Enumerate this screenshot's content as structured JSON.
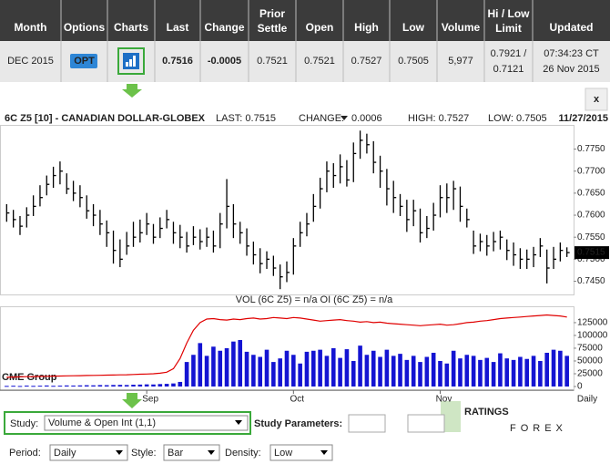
{
  "table": {
    "columns": [
      [
        "Month"
      ],
      [
        "Options"
      ],
      [
        "Charts"
      ],
      [
        "Last"
      ],
      [
        "Change"
      ],
      [
        "Prior",
        "Settle"
      ],
      [
        "Open"
      ],
      [
        "High"
      ],
      [
        "Low"
      ],
      [
        "Volume"
      ],
      [
        "Hi / Low",
        "Limit"
      ],
      [
        "Updated"
      ]
    ],
    "row": {
      "month": "DEC 2015",
      "options": "OPT",
      "last": "0.7516",
      "change": "-0.0005",
      "prior_settle": "0.7521",
      "open": "0.7521",
      "high": "0.7527",
      "low": "0.7505",
      "volume": "5,977",
      "limit": [
        "0.7921 /",
        "0.7121"
      ],
      "updated": [
        "07:34:23 CT",
        "26 Nov 2015"
      ]
    }
  },
  "close_button": "x",
  "chart_header": {
    "title": "6C Z5 [10] - CANADIAN DOLLAR-GLOBEX",
    "last": "LAST: 0.7515",
    "change_label": "CHANGE:",
    "change": "0.0006",
    "high": "HIGH: 0.7527",
    "low": "LOW: 0.7505",
    "date": "11/27/2015"
  },
  "chart_data": [
    {
      "type": "hlc",
      "color": "#000000",
      "xlim": [
        -1,
        85
      ],
      "ylim": [
        0.742,
        0.7805
      ],
      "yticks": [
        {
          "value": 0.745,
          "label": "0.7450"
        },
        {
          "value": 0.75,
          "label": "0.7500"
        },
        {
          "value": 0.755,
          "label": "0.7550"
        },
        {
          "value": 0.76,
          "label": "0.7600"
        },
        {
          "value": 0.765,
          "label": "0.7650"
        },
        {
          "value": 0.77,
          "label": "0.7700"
        },
        {
          "value": 0.775,
          "label": "0.7750"
        }
      ],
      "grid": false,
      "last_marker": {
        "value": 0.7515,
        "label": "0.7515"
      },
      "high": [
        0.7625,
        0.7612,
        0.7598,
        0.7618,
        0.7645,
        0.7668,
        0.769,
        0.771,
        0.7722,
        0.7695,
        0.7678,
        0.7668,
        0.7645,
        0.7625,
        0.7612,
        0.7588,
        0.7565,
        0.7545,
        0.7562,
        0.7585,
        0.759,
        0.7605,
        0.758,
        0.7595,
        0.7612,
        0.7585,
        0.7578,
        0.7562,
        0.7575,
        0.7568,
        0.7572,
        0.7565,
        0.7605,
        0.7682,
        0.7625,
        0.7585,
        0.757,
        0.754,
        0.7525,
        0.7518,
        0.7508,
        0.7488,
        0.7495,
        0.7548,
        0.7585,
        0.7605,
        0.7648,
        0.7685,
        0.7722,
        0.7718,
        0.7738,
        0.7725,
        0.7765,
        0.7792,
        0.7785,
        0.7768,
        0.7735,
        0.7705,
        0.7678,
        0.7648,
        0.7635,
        0.7635,
        0.7615,
        0.7598,
        0.7628,
        0.7668,
        0.7672,
        0.7678,
        0.7665,
        0.7615,
        0.7565,
        0.7558,
        0.7555,
        0.7562,
        0.7565,
        0.7545,
        0.7538,
        0.7525,
        0.7522,
        0.7528,
        0.7548,
        0.7522,
        0.7528,
        0.7538,
        0.7527
      ],
      "low": [
        0.7585,
        0.7572,
        0.7555,
        0.7572,
        0.7598,
        0.762,
        0.7645,
        0.7662,
        0.767,
        0.7648,
        0.7632,
        0.7618,
        0.7592,
        0.7575,
        0.7555,
        0.7528,
        0.749,
        0.7482,
        0.751,
        0.7528,
        0.7538,
        0.7555,
        0.7535,
        0.7548,
        0.757,
        0.7535,
        0.7525,
        0.7515,
        0.7532,
        0.7522,
        0.7528,
        0.7515,
        0.7525,
        0.757,
        0.7548,
        0.7535,
        0.7508,
        0.7488,
        0.7468,
        0.7478,
        0.7462,
        0.7432,
        0.7448,
        0.7465,
        0.7528,
        0.7552,
        0.7585,
        0.7615,
        0.7652,
        0.7662,
        0.7672,
        0.7665,
        0.7675,
        0.7728,
        0.774,
        0.7695,
        0.7662,
        0.7622,
        0.7605,
        0.7598,
        0.7562,
        0.7575,
        0.7538,
        0.7548,
        0.7565,
        0.7595,
        0.7605,
        0.7612,
        0.7585,
        0.7572,
        0.7512,
        0.7518,
        0.7508,
        0.7518,
        0.7522,
        0.7498,
        0.7485,
        0.7478,
        0.7478,
        0.7482,
        0.7505,
        0.7445,
        0.7478,
        0.7495,
        0.7505
      ],
      "close": [
        0.7605,
        0.759,
        0.7575,
        0.76,
        0.762,
        0.764,
        0.767,
        0.769,
        0.77,
        0.766,
        0.765,
        0.764,
        0.761,
        0.76,
        0.758,
        0.756,
        0.752,
        0.75,
        0.753,
        0.755,
        0.756,
        0.758,
        0.755,
        0.757,
        0.759,
        0.756,
        0.755,
        0.753,
        0.755,
        0.754,
        0.755,
        0.753,
        0.758,
        0.762,
        0.758,
        0.756,
        0.753,
        0.751,
        0.749,
        0.75,
        0.748,
        0.746,
        0.747,
        0.753,
        0.756,
        0.758,
        0.762,
        0.766,
        0.77,
        0.769,
        0.771,
        0.768,
        0.774,
        0.777,
        0.776,
        0.772,
        0.77,
        0.766,
        0.764,
        0.762,
        0.759,
        0.761,
        0.756,
        0.757,
        0.76,
        0.764,
        0.764,
        0.766,
        0.762,
        0.759,
        0.753,
        0.754,
        0.753,
        0.754,
        0.755,
        0.752,
        0.751,
        0.75,
        0.75,
        0.751,
        0.753,
        0.748,
        0.75,
        0.752,
        0.7515
      ]
    },
    {
      "type": "bar-line",
      "title": "VOL (6C Z5) = n/a OI (6C Z5) = n/a",
      "xlim": [
        -1,
        85
      ],
      "ylim": [
        0,
        157000
      ],
      "yticks": [
        0,
        25000,
        50000,
        75000,
        100000,
        125000
      ],
      "xticks": [
        {
          "value": 21,
          "label": "Sep"
        },
        {
          "value": 43,
          "label": "Oct"
        },
        {
          "value": 65,
          "label": "Nov"
        }
      ],
      "interval_label": "Daily",
      "series": [
        {
          "type": "bar",
          "color": "#1414d2",
          "values": [
            1200,
            1500,
            1100,
            1800,
            1300,
            1600,
            2000,
            1400,
            1700,
            2100,
            1900,
            2200,
            2500,
            2300,
            2800,
            2600,
            3000,
            3200,
            2900,
            3500,
            3800,
            4200,
            4000,
            4800,
            5200,
            6000,
            9000,
            48000,
            62000,
            85000,
            60000,
            78000,
            70000,
            75000,
            88000,
            91000,
            68000,
            62000,
            58000,
            72000,
            48000,
            55000,
            70000,
            62000,
            45000,
            68000,
            70000,
            72000,
            60000,
            75000,
            56000,
            73000,
            50000,
            80000,
            62000,
            70000,
            58000,
            72000,
            60000,
            64000,
            52000,
            60000,
            48000,
            58000,
            66000,
            50000,
            45000,
            70000,
            55000,
            62000,
            60000,
            52000,
            56000,
            48000,
            65000,
            55000,
            52000,
            58000,
            54000,
            60000,
            50000,
            66000,
            72000,
            70000,
            60000
          ]
        },
        {
          "type": "line",
          "color": "#e00000",
          "values": [
            18000,
            18500,
            19000,
            19200,
            19500,
            19800,
            20000,
            20300,
            20500,
            20800,
            21000,
            21200,
            21500,
            21800,
            22000,
            22300,
            22500,
            22800,
            23000,
            23500,
            24000,
            24500,
            25000,
            26000,
            28000,
            35000,
            55000,
            85000,
            110000,
            125000,
            132000,
            133000,
            131000,
            130000,
            132000,
            131000,
            133000,
            134000,
            132000,
            133000,
            135000,
            134000,
            133000,
            135000,
            134000,
            132000,
            130000,
            128000,
            129000,
            130000,
            131000,
            129000,
            128000,
            126000,
            127000,
            125000,
            126000,
            124000,
            123000,
            122000,
            121000,
            120000,
            119000,
            120000,
            121000,
            122000,
            120000,
            121000,
            123000,
            125000,
            126000,
            128000,
            129000,
            131000,
            133000,
            134000,
            135000,
            136000,
            137000,
            138000,
            139000,
            140000,
            139000,
            138000,
            136000
          ]
        }
      ]
    }
  ],
  "watermarks": {
    "cme": "CME Group",
    "ratings": "RATINGS",
    "forex": "FOREX"
  },
  "controls": {
    "study_label": "Study:",
    "study": "Volume & Open Int (1,1)",
    "study_parameters": "Study Parameters:",
    "period_label": "Period:",
    "period": "Daily",
    "style_label": "Style:",
    "style": "Bar",
    "density_label": "Density:",
    "density": "Low"
  }
}
